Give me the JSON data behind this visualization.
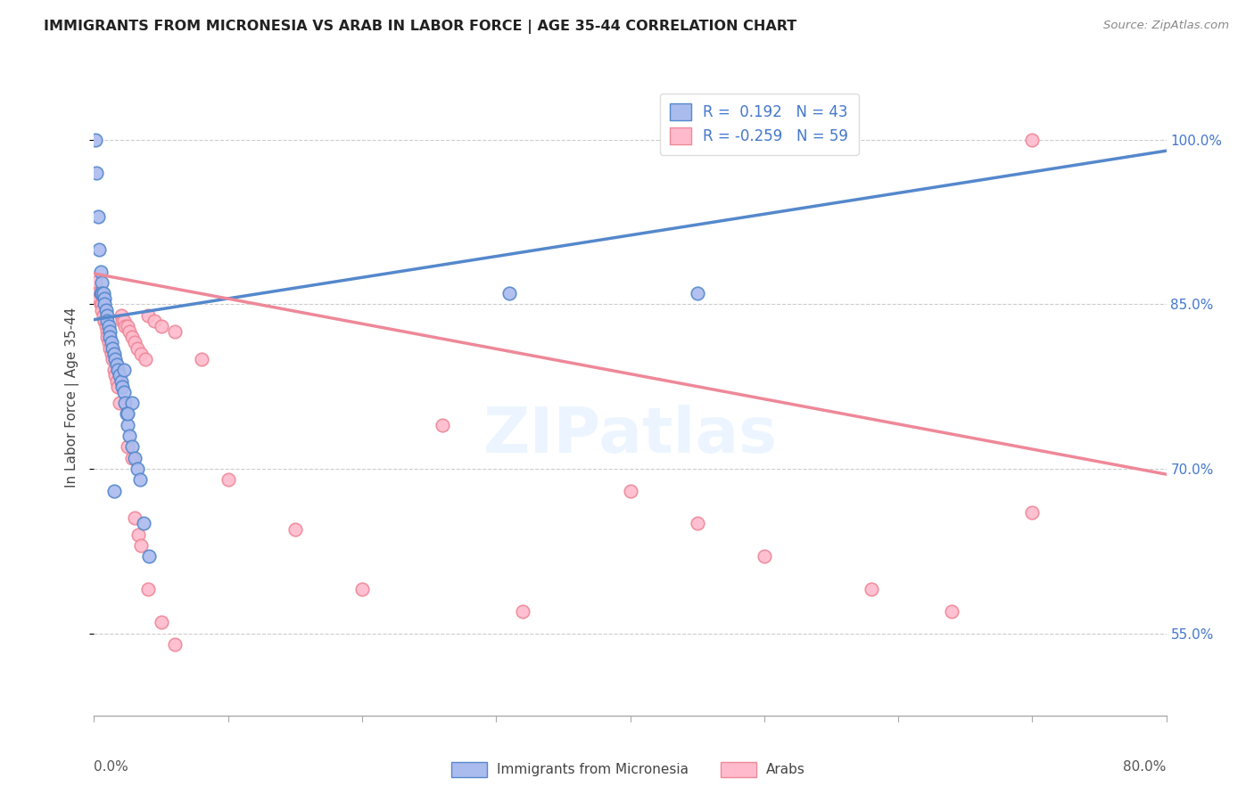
{
  "title": "IMMIGRANTS FROM MICRONESIA VS ARAB IN LABOR FORCE | AGE 35-44 CORRELATION CHART",
  "source": "Source: ZipAtlas.com",
  "ylabel": "In Labor Force | Age 35-44",
  "ytick_labels": [
    "55.0%",
    "70.0%",
    "85.0%",
    "100.0%"
  ],
  "ytick_values": [
    0.55,
    0.7,
    0.85,
    1.0
  ],
  "blue_color": "#5588cc",
  "pink_color": "#ee8899",
  "blue_fill": "#aabbee",
  "pink_fill": "#ffbbcc",
  "background_color": "#ffffff",
  "watermark_text": "ZIPatlas",
  "legend_text_color": "#4477cc",
  "blue_line_x0": 0.0,
  "blue_line_x1": 0.8,
  "blue_line_y0": 0.836,
  "blue_line_y1": 0.99,
  "pink_line_x0": 0.0,
  "pink_line_x1": 0.8,
  "pink_line_y0": 0.878,
  "pink_line_y1": 0.695,
  "xlim": [
    0.0,
    0.8
  ],
  "ylim": [
    0.475,
    1.055
  ],
  "blue_x": [
    0.001,
    0.002,
    0.003,
    0.004,
    0.005,
    0.005,
    0.006,
    0.006,
    0.007,
    0.008,
    0.008,
    0.009,
    0.01,
    0.01,
    0.011,
    0.012,
    0.012,
    0.013,
    0.014,
    0.015,
    0.016,
    0.017,
    0.018,
    0.019,
    0.02,
    0.021,
    0.022,
    0.023,
    0.024,
    0.025,
    0.026,
    0.028,
    0.03,
    0.032,
    0.034,
    0.037,
    0.041,
    0.028,
    0.025,
    0.022,
    0.015,
    0.31,
    0.45
  ],
  "blue_y": [
    1.0,
    0.97,
    0.93,
    0.9,
    0.88,
    0.86,
    0.87,
    0.86,
    0.86,
    0.855,
    0.85,
    0.845,
    0.84,
    0.835,
    0.83,
    0.825,
    0.82,
    0.815,
    0.81,
    0.805,
    0.8,
    0.795,
    0.79,
    0.785,
    0.78,
    0.775,
    0.77,
    0.76,
    0.75,
    0.74,
    0.73,
    0.72,
    0.71,
    0.7,
    0.69,
    0.65,
    0.62,
    0.76,
    0.75,
    0.79,
    0.68,
    0.86,
    0.86
  ],
  "pink_x": [
    0.001,
    0.002,
    0.003,
    0.003,
    0.004,
    0.005,
    0.006,
    0.006,
    0.007,
    0.008,
    0.008,
    0.009,
    0.01,
    0.01,
    0.011,
    0.012,
    0.013,
    0.014,
    0.015,
    0.016,
    0.017,
    0.018,
    0.019,
    0.02,
    0.021,
    0.022,
    0.023,
    0.025,
    0.026,
    0.028,
    0.03,
    0.032,
    0.035,
    0.038,
    0.04,
    0.045,
    0.05,
    0.06,
    0.08,
    0.1,
    0.15,
    0.2,
    0.26,
    0.32,
    0.4,
    0.45,
    0.5,
    0.58,
    0.64,
    0.7,
    0.025,
    0.028,
    0.03,
    0.033,
    0.035,
    0.04,
    0.05,
    0.06,
    0.7
  ],
  "pink_y": [
    0.87,
    0.86,
    0.86,
    0.855,
    0.855,
    0.85,
    0.85,
    0.845,
    0.84,
    0.835,
    0.835,
    0.83,
    0.825,
    0.82,
    0.815,
    0.81,
    0.805,
    0.8,
    0.79,
    0.785,
    0.78,
    0.775,
    0.76,
    0.84,
    0.835,
    0.835,
    0.83,
    0.83,
    0.825,
    0.82,
    0.815,
    0.81,
    0.805,
    0.8,
    0.84,
    0.835,
    0.83,
    0.825,
    0.8,
    0.69,
    0.645,
    0.59,
    0.74,
    0.57,
    0.68,
    0.65,
    0.62,
    0.59,
    0.57,
    1.0,
    0.72,
    0.71,
    0.655,
    0.64,
    0.63,
    0.59,
    0.56,
    0.54,
    0.66
  ]
}
